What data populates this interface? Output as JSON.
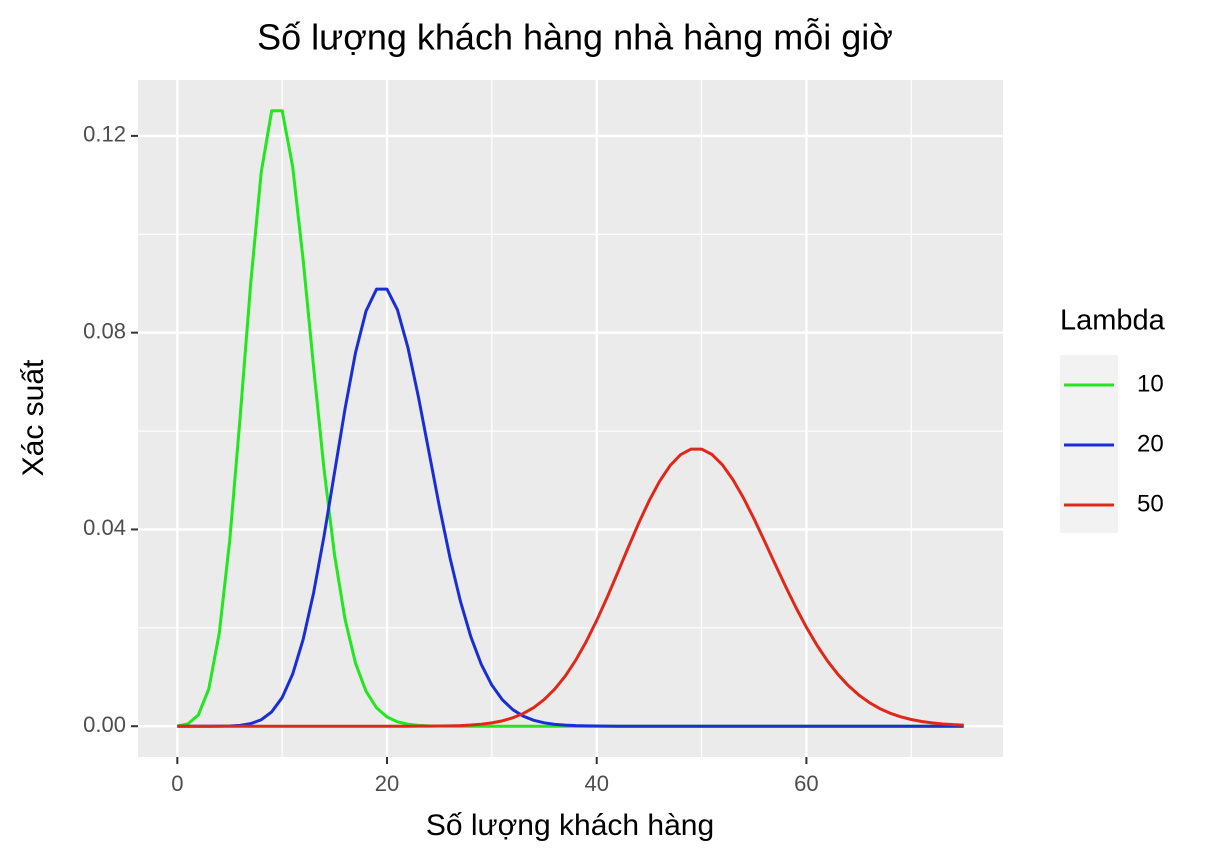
{
  "chart_data": {
    "type": "line",
    "title": "Số lượng khách hàng nhà hàng mỗi giờ",
    "x_label": "Số lượng khách hàng",
    "y_label": "Xác suất",
    "legend_title": "Lambda",
    "legend_position": "right",
    "grid": true,
    "xlim": [
      -3.75,
      78.75
    ],
    "ylim": [
      -0.00626,
      0.13136
    ],
    "xticks": [
      0,
      20,
      40,
      60
    ],
    "xminor": [
      10,
      30,
      50,
      70
    ],
    "yticks": [
      {
        "value": 0,
        "label": "0.00"
      },
      {
        "value": 0.04,
        "label": "0.04"
      },
      {
        "value": 0.08,
        "label": "0.08"
      },
      {
        "value": 0.12,
        "label": "0.12"
      }
    ],
    "yminor": [
      0.02,
      0.06,
      0.1
    ],
    "x": [
      0,
      1,
      2,
      3,
      4,
      5,
      6,
      7,
      8,
      9,
      10,
      11,
      12,
      13,
      14,
      15,
      16,
      17,
      18,
      19,
      20,
      21,
      22,
      23,
      24,
      25,
      26,
      27,
      28,
      29,
      30,
      31,
      32,
      33,
      34,
      35,
      36,
      37,
      38,
      39,
      40,
      41,
      42,
      43,
      44,
      45,
      46,
      47,
      48,
      49,
      50,
      51,
      52,
      53,
      54,
      55,
      56,
      57,
      58,
      59,
      60,
      61,
      62,
      63,
      64,
      65,
      66,
      67,
      68,
      69,
      70,
      71,
      72,
      73,
      74,
      75
    ],
    "series": [
      {
        "name": "10",
        "color": "#22e61e",
        "values": [
          5e-05,
          0.00045,
          0.00227,
          0.00757,
          0.01892,
          0.03783,
          0.06306,
          0.09008,
          0.1126,
          0.12511,
          0.12511,
          0.11374,
          0.09478,
          0.07291,
          0.05208,
          0.03472,
          0.0217,
          0.01276,
          0.00709,
          0.00373,
          0.00187,
          0.00089,
          0.0004,
          0.00018,
          7e-05,
          3e-05,
          1e-05,
          0,
          0,
          0,
          0,
          0,
          0,
          0,
          0,
          0,
          0,
          0,
          0,
          0,
          0,
          0,
          0,
          0,
          0,
          0,
          0,
          0,
          0,
          0,
          0,
          0,
          0,
          0,
          0,
          0,
          0,
          0,
          0,
          0,
          0,
          0,
          0,
          0,
          0,
          0,
          0,
          0,
          0,
          0,
          0,
          0,
          0,
          0,
          0,
          0
        ]
      },
      {
        "name": "20",
        "color": "#1a2ed6",
        "values": [
          0,
          0,
          0,
          0,
          1e-05,
          5e-05,
          0.00018,
          0.00052,
          0.00131,
          0.00291,
          0.00582,
          0.01058,
          0.01763,
          0.02712,
          0.03874,
          0.05165,
          0.06457,
          0.07596,
          0.0844,
          0.08884,
          0.08884,
          0.08461,
          0.07692,
          0.06689,
          0.05574,
          0.04459,
          0.0343,
          0.02541,
          0.01815,
          0.01252,
          0.00834,
          0.00538,
          0.00336,
          0.00204,
          0.0012,
          0.00069,
          0.00038,
          0.00021,
          0.00011,
          6e-05,
          3e-05,
          1e-05,
          0,
          0,
          0,
          0,
          0,
          0,
          0,
          0,
          0,
          0,
          0,
          0,
          0,
          0,
          0,
          0,
          0,
          0,
          0,
          0,
          0,
          0,
          0,
          0,
          0,
          0,
          0,
          0,
          0,
          0,
          0,
          0,
          0,
          0
        ]
      },
      {
        "name": "50",
        "color": "#e0281a",
        "values": [
          0,
          0,
          0,
          0,
          0,
          0,
          0,
          0,
          0,
          0,
          0,
          0,
          0,
          0,
          0,
          0,
          0,
          0,
          0,
          0,
          0,
          0,
          0,
          1e-05,
          2e-05,
          4e-05,
          7e-05,
          0.00013,
          0.00024,
          0.00041,
          0.00068,
          0.00109,
          0.00171,
          0.00259,
          0.0038,
          0.00543,
          0.00755,
          0.0102,
          0.01342,
          0.0172,
          0.0215,
          0.02622,
          0.03122,
          0.0363,
          0.04125,
          0.04583,
          0.04981,
          0.05299,
          0.0552,
          0.05633,
          0.05633,
          0.05523,
          0.0531,
          0.0501,
          0.04639,
          0.04217,
          0.03765,
          0.03303,
          0.02847,
          0.02413,
          0.02011,
          0.01648,
          0.01329,
          0.01055,
          0.00824,
          0.00634,
          0.0048,
          0.00358,
          0.00263,
          0.00191,
          0.00136,
          0.00096,
          0.00067,
          0.00046,
          0.00031,
          0.00021
        ]
      }
    ]
  }
}
